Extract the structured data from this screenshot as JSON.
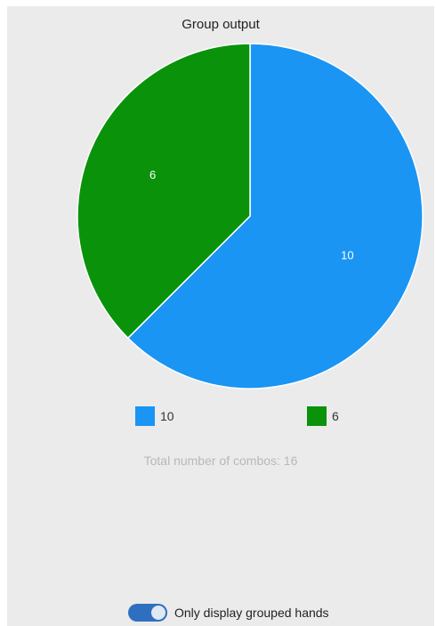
{
  "chart_data": {
    "type": "pie",
    "title": "Group output",
    "slices": [
      {
        "label": "10",
        "value": 10,
        "color": "#1a95f3"
      },
      {
        "label": "6",
        "value": 6,
        "color": "#0a930a"
      }
    ],
    "legend_position": "bottom"
  },
  "summary": {
    "total_text": "Total number of combos: 16"
  },
  "controls": {
    "toggle_label": "Only display grouped hands",
    "toggle_on": true
  }
}
